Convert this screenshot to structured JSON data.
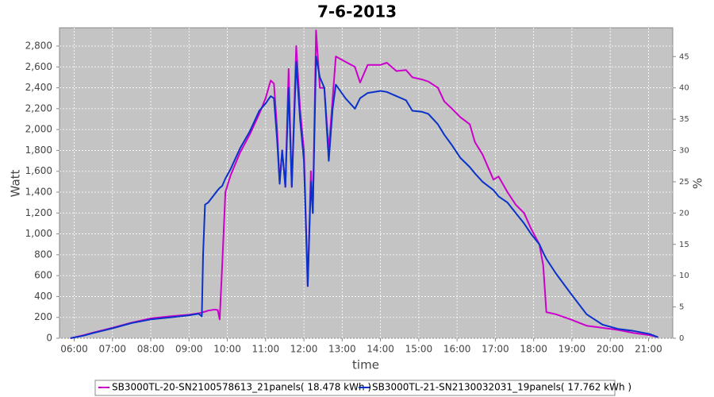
{
  "chart_data": {
    "type": "line",
    "title": "7-6-2013",
    "x_label": "time",
    "y_label": "Watt",
    "y2_label": "%",
    "x": [
      "05:54",
      "06:15",
      "06:30",
      "07:00",
      "07:30",
      "08:00",
      "08:30",
      "09:00",
      "09:15",
      "09:20",
      "09:22",
      "09:25",
      "09:30",
      "09:40",
      "09:45",
      "09:48",
      "09:52",
      "09:57",
      "10:05",
      "10:20",
      "10:35",
      "10:50",
      "11:00",
      "11:08",
      "11:13",
      "11:18",
      "11:22",
      "11:26",
      "11:31",
      "11:36",
      "11:41",
      "11:48",
      "11:54",
      "12:00",
      "12:06",
      "12:11",
      "12:14",
      "12:19",
      "12:25",
      "12:32",
      "12:39",
      "12:45",
      "12:50",
      "13:05",
      "13:20",
      "13:28",
      "13:40",
      "14:00",
      "14:10",
      "14:25",
      "14:40",
      "14:50",
      "15:05",
      "15:15",
      "15:30",
      "15:40",
      "15:52",
      "16:05",
      "16:20",
      "16:28",
      "16:40",
      "16:57",
      "17:05",
      "17:19",
      "17:32",
      "17:45",
      "17:56",
      "18:09",
      "18:15",
      "18:20",
      "18:35",
      "18:58",
      "19:23",
      "19:48",
      "20:12",
      "20:37",
      "21:02",
      "21:15"
    ],
    "series": [
      {
        "name": "SB3000TL-20-SN2100578613_21panels( 18.478 kWh )",
        "color": "#cc00cc",
        "values": [
          0,
          30,
          55,
          100,
          150,
          190,
          210,
          225,
          240,
          245,
          250,
          255,
          265,
          275,
          270,
          180,
          700,
          1400,
          1560,
          1780,
          1950,
          2150,
          2300,
          2470,
          2440,
          2000,
          1500,
          1800,
          1450,
          2580,
          1450,
          2800,
          2200,
          1800,
          500,
          1600,
          1200,
          2950,
          2400,
          2400,
          1800,
          2300,
          2700,
          2650,
          2600,
          2450,
          2620,
          2620,
          2640,
          2560,
          2570,
          2500,
          2480,
          2460,
          2400,
          2270,
          2200,
          2120,
          2050,
          1880,
          1760,
          1520,
          1550,
          1400,
          1280,
          1200,
          1050,
          900,
          700,
          250,
          230,
          180,
          120,
          100,
          80,
          50,
          30,
          10
        ]
      },
      {
        "name": "SB3000TL-21-SN2130032031_19panels( 17.762 kWh )",
        "color": "#0a32c8",
        "values": [
          0,
          25,
          50,
          95,
          145,
          180,
          200,
          220,
          235,
          210,
          800,
          1280,
          1300,
          1380,
          1420,
          1440,
          1460,
          1530,
          1620,
          1820,
          1980,
          2180,
          2250,
          2320,
          2300,
          1900,
          1480,
          1800,
          1450,
          2400,
          1450,
          2650,
          2100,
          1700,
          500,
          1500,
          1200,
          2700,
          2500,
          2400,
          1700,
          2200,
          2430,
          2300,
          2200,
          2300,
          2350,
          2370,
          2360,
          2320,
          2280,
          2180,
          2170,
          2150,
          2050,
          1950,
          1850,
          1730,
          1640,
          1580,
          1500,
          1420,
          1360,
          1300,
          1200,
          1100,
          1000,
          900,
          820,
          760,
          620,
          430,
          230,
          130,
          90,
          70,
          40,
          10
        ]
      }
    ],
    "xlim": [
      "05:37",
      "21:38"
    ],
    "xticks": [
      "06:00",
      "07:00",
      "08:00",
      "09:00",
      "10:00",
      "11:00",
      "12:00",
      "13:00",
      "14:00",
      "15:00",
      "16:00",
      "17:00",
      "18:00",
      "19:00",
      "20:00",
      "21:00"
    ],
    "ylim": [
      0,
      2975
    ],
    "yticks": [
      0,
      200,
      400,
      600,
      800,
      {
        "value": 1000,
        "label": "1,000"
      },
      {
        "value": 1200,
        "label": "1,200"
      },
      {
        "value": 1400,
        "label": "1,400"
      },
      {
        "value": 1600,
        "label": "1,600"
      },
      {
        "value": 1800,
        "label": "1,800"
      },
      {
        "value": 2000,
        "label": "2,000"
      },
      {
        "value": 2200,
        "label": "2,200"
      },
      {
        "value": 2400,
        "label": "2,400"
      },
      {
        "value": 2600,
        "label": "2,600"
      },
      {
        "value": 2800,
        "label": "2,800"
      }
    ],
    "y2lim": [
      0,
      49.6
    ],
    "y2ticks": [
      0,
      5,
      10,
      15,
      20,
      25,
      30,
      35,
      40,
      45
    ],
    "grid": true
  }
}
